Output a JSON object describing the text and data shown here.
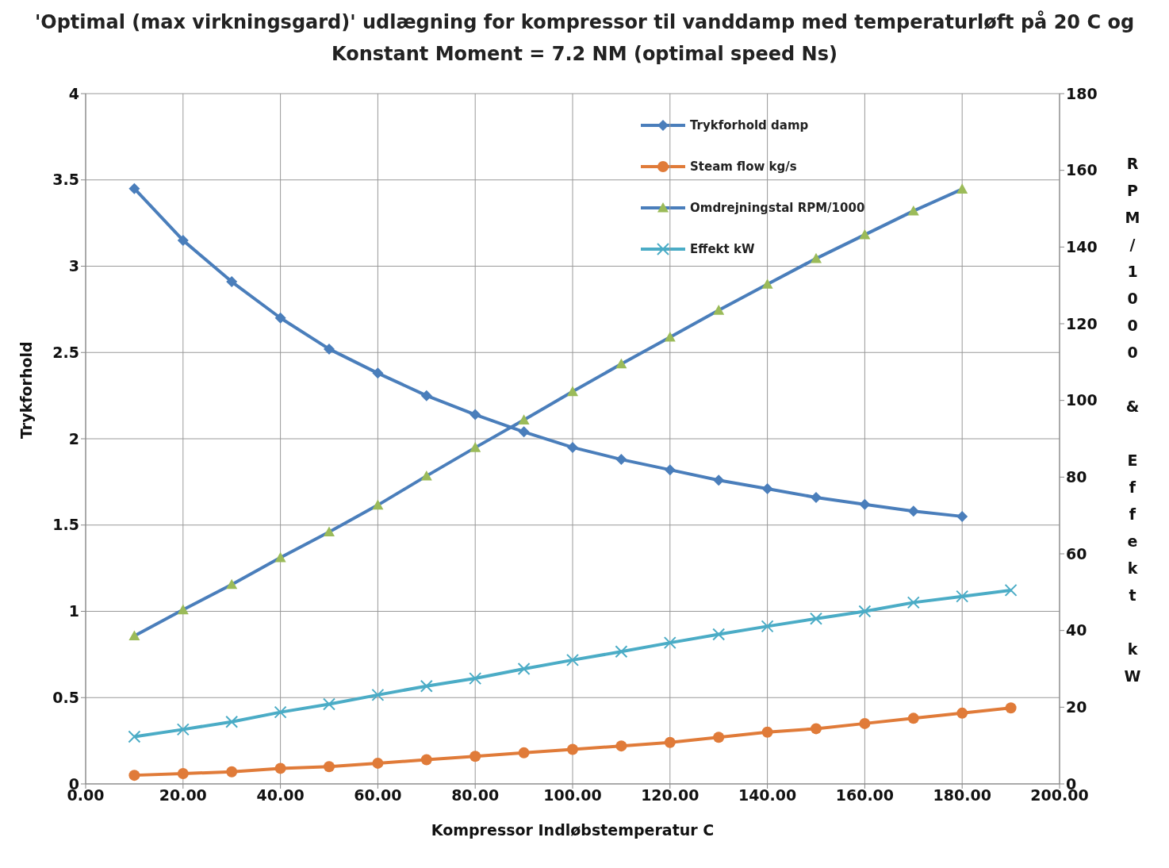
{
  "chart_data": {
    "type": "line",
    "title": "'Optimal (max virkningsgard)' udlægning for kompressor til vanddamp med temperaturløft på 20 C og Konstant Moment = 7.2 NM (optimal speed Ns)",
    "xlabel": "Kompressor Indløbstemperatur C",
    "ylabel": "Trykforhold",
    "y2label": "RPM/1000 & Effekt kW",
    "xlim": [
      0,
      200
    ],
    "xticks": [
      {
        "value": 0,
        "label": "0.00"
      },
      {
        "value": 20,
        "label": "20.00"
      },
      {
        "value": 40,
        "label": "40.00"
      },
      {
        "value": 60,
        "label": "60.00"
      },
      {
        "value": 80,
        "label": "80.00"
      },
      {
        "value": 100,
        "label": "100.00"
      },
      {
        "value": 120,
        "label": "120.00"
      },
      {
        "value": 140,
        "label": "140.00"
      },
      {
        "value": 160,
        "label": "160.00"
      },
      {
        "value": 180,
        "label": "180.00"
      },
      {
        "value": 200,
        "label": "200.00"
      }
    ],
    "ylim": [
      0,
      4
    ],
    "yticks": [
      0,
      0.5,
      1,
      1.5,
      2,
      2.5,
      3,
      3.5,
      4
    ],
    "y2lim": [
      0,
      180
    ],
    "y2ticks": [
      0,
      20,
      40,
      60,
      80,
      100,
      120,
      140,
      160,
      180
    ],
    "grid": true,
    "legend": "top",
    "series": [
      {
        "name": "Trykforhold  damp",
        "color": "#4a7ebb",
        "marker": "diamond",
        "x": [
          10,
          20,
          30,
          40,
          50,
          60,
          70,
          80,
          90,
          100,
          110,
          120,
          130,
          140,
          150,
          160,
          170,
          180
        ],
        "values": [
          3.45,
          3.15,
          2.91,
          2.7,
          2.52,
          2.38,
          2.25,
          2.14,
          2.04,
          1.95,
          1.88,
          1.82,
          1.76,
          1.71,
          1.66,
          1.62,
          1.58,
          1.55
        ]
      },
      {
        "name": "Steam flow kg/s",
        "color": "#e07b39",
        "marker": "circle",
        "x": [
          10,
          20,
          30,
          40,
          50,
          60,
          70,
          80,
          90,
          100,
          110,
          120,
          130,
          140,
          150,
          160,
          170,
          180,
          190
        ],
        "values": [
          0.05,
          0.06,
          0.07,
          0.09,
          0.1,
          0.12,
          0.14,
          0.16,
          0.18,
          0.2,
          0.22,
          0.24,
          0.27,
          0.3,
          0.32,
          0.35,
          0.38,
          0.41,
          0.44
        ]
      },
      {
        "name": "Omdrejningstal  RPM/1000",
        "color": "#4a7ebb",
        "marker": "triangle",
        "axis": "y2",
        "x": [
          10,
          20,
          30,
          40,
          50,
          60,
          70,
          80,
          90,
          100,
          110,
          120,
          130,
          140,
          150,
          160,
          170,
          180
        ],
        "values": [
          38.6,
          45.4,
          52,
          59,
          65.7,
          72.7,
          80.3,
          87.7,
          94.9,
          102.3,
          109.5,
          116.5,
          123.5,
          130.3,
          137,
          143.2,
          149.4,
          155.1
        ]
      },
      {
        "name": "Effekt kW",
        "color": "#4bacc6",
        "marker": "cross",
        "axis": "y2",
        "x": [
          10,
          20,
          30,
          40,
          50,
          60,
          70,
          80,
          90,
          100,
          110,
          120,
          130,
          140,
          150,
          160,
          170,
          180,
          190
        ],
        "values": [
          12.3,
          14.2,
          16.2,
          18.7,
          20.8,
          23.2,
          25.5,
          27.5,
          30,
          32.3,
          34.5,
          36.8,
          39,
          41.1,
          43.1,
          45,
          47.3,
          48.9,
          50.5
        ]
      }
    ]
  }
}
